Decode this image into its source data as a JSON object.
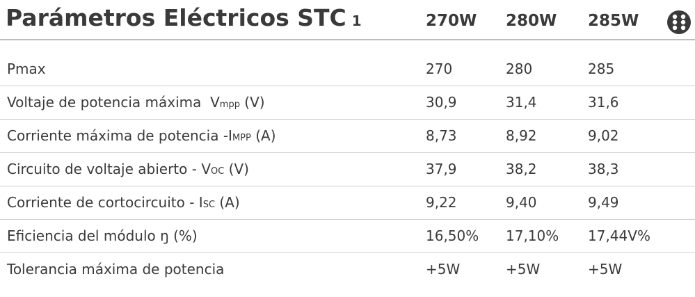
{
  "header": {
    "title": "Parámetros Eléctricos STC",
    "note": "1",
    "columns": [
      "270W",
      "280W",
      "285W"
    ]
  },
  "table": {
    "rows": [
      {
        "label": "Pmax",
        "values": [
          "270",
          "280",
          "285"
        ]
      },
      {
        "label": "Voltaje de potencia máxima  V",
        "sub": "mpp",
        "unit": " (V)",
        "values": [
          "30,9",
          "31,4",
          "31,6"
        ]
      },
      {
        "label": "Corriente máxima de potencia -I",
        "sub": "MPP",
        "unit": " (A)",
        "values": [
          "8,73",
          "8,92",
          "9,02"
        ]
      },
      {
        "label": "Circuito de voltaje abierto - V",
        "sub": "OC",
        "unit": " (V)",
        "values": [
          "37,9",
          "38,2",
          "38,3"
        ]
      },
      {
        "label": "Corriente de cortocircuito - I",
        "sub": "SC",
        "unit": " (A)",
        "values": [
          "9,22",
          "9,40",
          "9,49"
        ]
      },
      {
        "label": "Eficiencia del módulo ŋ (%)",
        "values": [
          "16,50%",
          "17,10%",
          "17,44V%"
        ]
      },
      {
        "label": "Tolerancia máxima de potencia",
        "values": [
          "+5W",
          "+5W",
          "+5W"
        ]
      }
    ]
  }
}
